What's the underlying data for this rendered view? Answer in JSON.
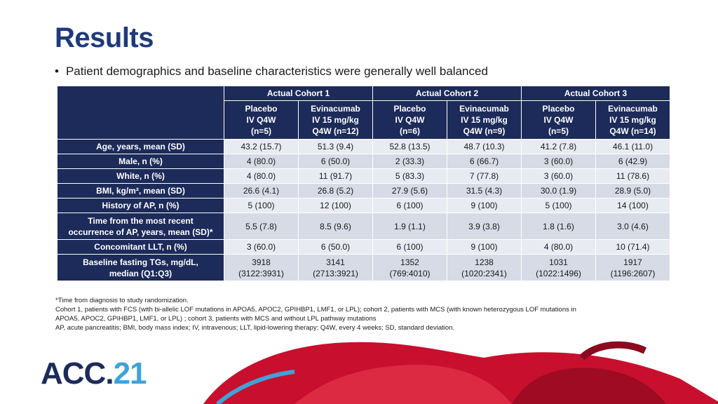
{
  "title": "Results",
  "subtitle": "Patient demographics and baseline characteristics were generally well balanced",
  "table": {
    "groups": [
      "Actual Cohort 1",
      "Actual Cohort 2",
      "Actual Cohort 3"
    ],
    "subheaders": [
      [
        "Placebo",
        "IV Q4W",
        "(n=5)"
      ],
      [
        "Evinacumab",
        "IV 15 mg/kg",
        "Q4W (n=12)"
      ],
      [
        "Placebo",
        "IV Q4W",
        "(n=6)"
      ],
      [
        "Evinacumab",
        "IV 15 mg/kg",
        "Q4W (n=9)"
      ],
      [
        "Placebo",
        "IV Q4W",
        "(n=5)"
      ],
      [
        "Evinacumab",
        "IV 15 mg/kg",
        "Q4W (n=14)"
      ]
    ],
    "rows": [
      {
        "label": [
          "Age, years, mean (SD)"
        ],
        "values": [
          [
            "43.2 (15.7)"
          ],
          [
            "51.3 (9.4)"
          ],
          [
            "52.8 (13.5)"
          ],
          [
            "48.7 (10.3)"
          ],
          [
            "41.2 (7.8)"
          ],
          [
            "46.1 (11.0)"
          ]
        ]
      },
      {
        "label": [
          "Male, n (%)"
        ],
        "values": [
          [
            "4 (80.0)"
          ],
          [
            "6 (50.0)"
          ],
          [
            "2 (33.3)"
          ],
          [
            "6 (66.7)"
          ],
          [
            "3 (60.0)"
          ],
          [
            "6 (42.9)"
          ]
        ]
      },
      {
        "label": [
          "White, n (%)"
        ],
        "values": [
          [
            "4 (80.0)"
          ],
          [
            "11 (91.7)"
          ],
          [
            "5 (83.3)"
          ],
          [
            "7 (77.8)"
          ],
          [
            "3 (60.0)"
          ],
          [
            "11 (78.6)"
          ]
        ]
      },
      {
        "label": [
          "BMI, kg/m², mean (SD)"
        ],
        "values": [
          [
            "26.6 (4.1)"
          ],
          [
            "26.8 (5.2)"
          ],
          [
            "27.9 (5.6)"
          ],
          [
            "31.5 (4.3)"
          ],
          [
            "30.0 (1.9)"
          ],
          [
            "28.9 (5.0)"
          ]
        ]
      },
      {
        "label": [
          "History of AP, n (%)"
        ],
        "values": [
          [
            "5 (100)"
          ],
          [
            "12 (100)"
          ],
          [
            "6 (100)"
          ],
          [
            "9 (100)"
          ],
          [
            "5 (100)"
          ],
          [
            "14 (100)"
          ]
        ]
      },
      {
        "label": [
          "Time from the most recent",
          "occurrence of AP, years, mean (SD)*"
        ],
        "values": [
          [
            "5.5 (7.8)"
          ],
          [
            "8.5 (9.6)"
          ],
          [
            "1.9 (1.1)"
          ],
          [
            "3.9 (3.8)"
          ],
          [
            "1.8 (1.6)"
          ],
          [
            "3.0 (4.6)"
          ]
        ]
      },
      {
        "label": [
          "Concomitant LLT, n (%)"
        ],
        "values": [
          [
            "3 (60.0)"
          ],
          [
            "6 (50.0)"
          ],
          [
            "6 (100)"
          ],
          [
            "9 (100)"
          ],
          [
            "4 (80.0)"
          ],
          [
            "10 (71.4)"
          ]
        ]
      },
      {
        "label": [
          "Baseline fasting TGs, mg/dL,",
          "median (Q1:Q3)"
        ],
        "values": [
          [
            "3918",
            "(3122:3931)"
          ],
          [
            "3141",
            "(2713:3921)"
          ],
          [
            "1352",
            "(769:4010)"
          ],
          [
            "1238",
            "(1020:2341)"
          ],
          [
            "1031",
            "(1022:1496)"
          ],
          [
            "1917",
            "(1196:2607)"
          ]
        ]
      }
    ]
  },
  "footnotes": [
    "*Time from diagnosis to study randomization.",
    "Cohort 1, patients with FCS (with bi-allelic LOF mutations in APOA5, APOC2, GPIHBP1, LMF1, or LPL); cohort 2, patients with MCS (with known heterozygous LOF mutations in",
    "APOA5, APOC2, GPIHBP1, LMF1, or LPL) ; cohort 3, patients with MCS and without LPL pathway mutations",
    "AP, acute pancreatitis; BMI, body mass index; IV, intravenous; LLT, lipid-lowering therapy; Q4W, every 4 weeks; SD, standard deviation."
  ],
  "logo": {
    "main": "ACC.",
    "accent": "21"
  },
  "colors": {
    "header": "#1c2b59",
    "cell": "#e8ebf2",
    "cell_alt": "#d6dbe6",
    "title": "#1f3a7a",
    "logo_accent": "#3fa3d8",
    "heart_red": "#c8102e"
  }
}
